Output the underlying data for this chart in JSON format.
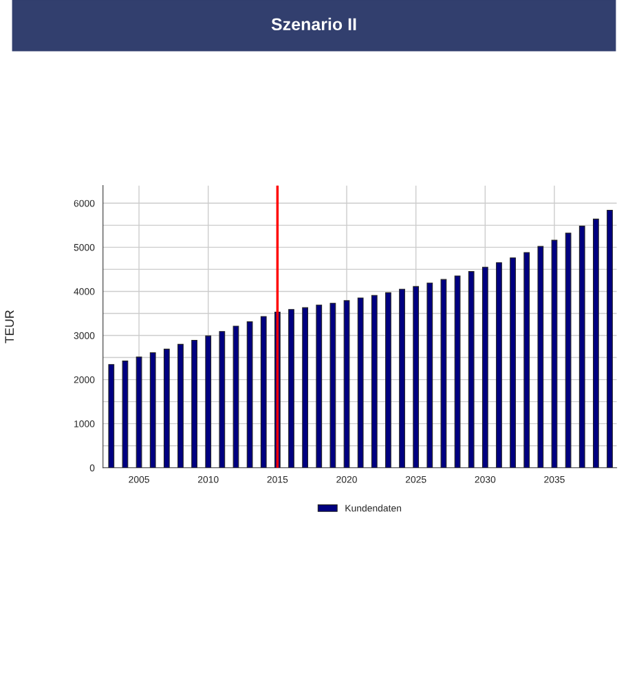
{
  "chart_data": {
    "type": "bar",
    "title": "Szenario II",
    "ylabel": "TEUR",
    "x": [
      2003,
      2004,
      2005,
      2006,
      2007,
      2008,
      2009,
      2010,
      2011,
      2012,
      2013,
      2014,
      2015,
      2016,
      2017,
      2018,
      2019,
      2020,
      2021,
      2022,
      2023,
      2024,
      2025,
      2026,
      2027,
      2028,
      2029,
      2030,
      2031,
      2032,
      2033,
      2034,
      2035,
      2036,
      2037,
      2038,
      2039
    ],
    "series": [
      {
        "name": "Kundendaten",
        "color": "#000080",
        "values": [
          2340,
          2420,
          2510,
          2610,
          2690,
          2800,
          2890,
          2990,
          3090,
          3210,
          3310,
          3430,
          3530,
          3590,
          3630,
          3690,
          3730,
          3790,
          3850,
          3910,
          3970,
          4050,
          4110,
          4190,
          4270,
          4350,
          4450,
          4550,
          4650,
          4760,
          4880,
          5020,
          5160,
          5320,
          5480,
          5640,
          5840
        ]
      }
    ],
    "xlim": [
      2002.4,
      2039.5
    ],
    "xticks": [
      2005,
      2010,
      2015,
      2020,
      2025,
      2030,
      2035
    ],
    "ylim": [
      0,
      6400
    ],
    "yticks": [
      0,
      {
        "value": 500,
        "label": null
      },
      1000,
      {
        "value": 1500,
        "label": null
      },
      2000,
      {
        "value": 2500,
        "label": null
      },
      3000,
      {
        "value": 3500,
        "label": null
      },
      4000,
      {
        "value": 4500,
        "label": null
      },
      5000,
      {
        "value": 5500,
        "label": null
      },
      6000
    ],
    "ref_lines": [
      {
        "axis": "x",
        "value": 2015,
        "color": "#ff0000"
      }
    ],
    "grid": true,
    "legend": "bottom"
  }
}
